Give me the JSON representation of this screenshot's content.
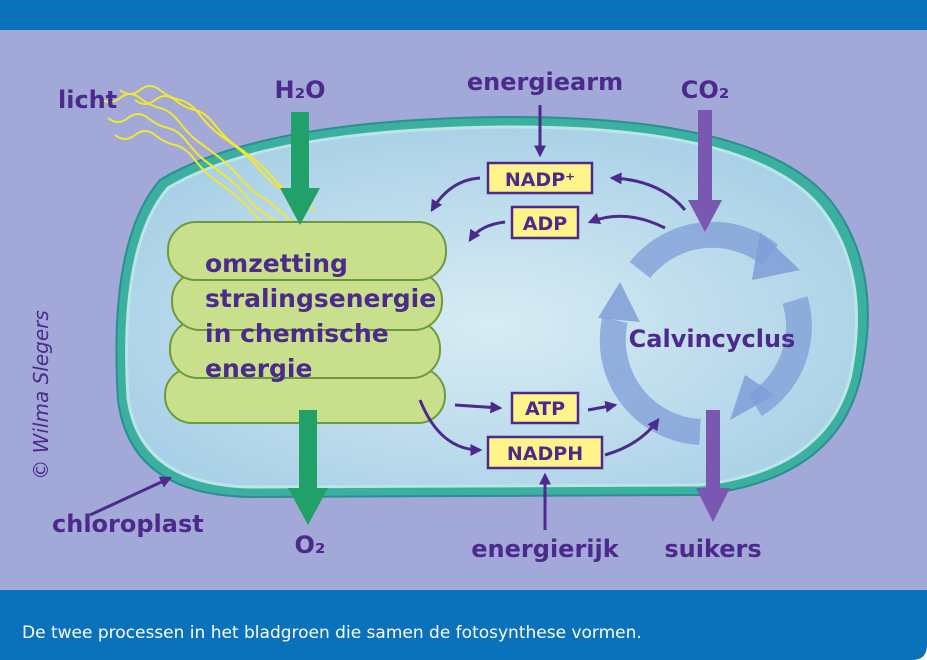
{
  "labels": {
    "light": "licht",
    "water": "H₂O",
    "low_energy": "energiearm",
    "carbon_dioxide": "CO₂",
    "oxygen": "O₂",
    "high_energy": "energierijk",
    "sugars": "suikers",
    "chloroplast": "chloroplast"
  },
  "boxes": {
    "nadp": "NADP⁺",
    "adp": "ADP",
    "atp": "ATP",
    "nadph": "NADPH"
  },
  "thylakoid": {
    "lines": [
      "omzetting",
      "stralingsenergie",
      "in chemische",
      "energie"
    ]
  },
  "cycle": {
    "label": "Calvincyclus"
  },
  "credit": "© Wilma Slegers",
  "caption": "De twee processen in het bladgroen die samen de fotosynthese vormen."
}
